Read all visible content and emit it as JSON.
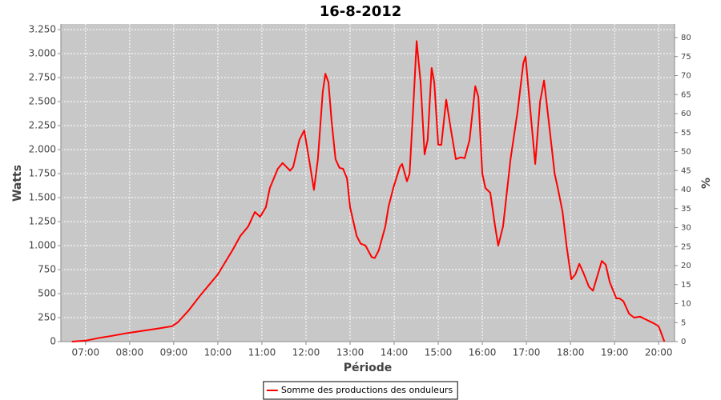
{
  "chart_data": {
    "type": "line",
    "title": "16-8-2012",
    "xlabel": "Période",
    "ylabel": "Watts",
    "y2label": "%",
    "x": [
      6.69,
      7.0,
      7.33,
      7.6,
      7.96,
      8.33,
      8.69,
      8.96,
      9.09,
      9.33,
      9.6,
      10.0,
      10.33,
      10.51,
      10.69,
      10.84,
      10.96,
      11.09,
      11.18,
      11.36,
      11.47,
      11.64,
      11.71,
      11.85,
      11.96,
      12.07,
      12.18,
      12.27,
      12.38,
      12.44,
      12.51,
      12.58,
      12.67,
      12.76,
      12.84,
      12.93,
      13.0,
      13.15,
      13.24,
      13.35,
      13.49,
      13.56,
      13.65,
      13.8,
      13.87,
      13.98,
      14.13,
      14.18,
      14.29,
      14.35,
      14.44,
      14.51,
      14.6,
      14.69,
      14.76,
      14.85,
      14.91,
      15.0,
      15.07,
      15.18,
      15.29,
      15.4,
      15.51,
      15.6,
      15.71,
      15.84,
      15.91,
      16.0,
      16.07,
      16.18,
      16.29,
      16.36,
      16.47,
      16.64,
      16.8,
      16.93,
      16.98,
      17.13,
      17.2,
      17.31,
      17.4,
      17.53,
      17.64,
      17.73,
      17.82,
      17.91,
      18.02,
      18.11,
      18.2,
      18.29,
      18.42,
      18.51,
      18.62,
      18.71,
      18.8,
      18.89,
      19.04,
      19.11,
      19.2,
      19.33,
      19.44,
      19.58,
      19.71,
      19.89,
      20.0,
      20.13
    ],
    "series": [
      {
        "name": "Somme des productions des onduleurs",
        "color": "#ff0000",
        "values": [
          0,
          10,
          40,
          60,
          90,
          115,
          140,
          160,
          200,
          320,
          480,
          700,
          950,
          1100,
          1200,
          1350,
          1300,
          1400,
          1600,
          1800,
          1860,
          1780,
          1820,
          2100,
          2200,
          1900,
          1580,
          1900,
          2600,
          2790,
          2700,
          2300,
          1900,
          1810,
          1800,
          1700,
          1400,
          1100,
          1020,
          1000,
          880,
          870,
          950,
          1200,
          1400,
          1600,
          1820,
          1850,
          1670,
          1750,
          2500,
          3130,
          2700,
          1950,
          2100,
          2850,
          2700,
          2050,
          2050,
          2520,
          2200,
          1900,
          1920,
          1910,
          2100,
          2660,
          2550,
          1750,
          1600,
          1550,
          1200,
          1000,
          1200,
          1900,
          2400,
          2900,
          2970,
          2200,
          1850,
          2500,
          2720,
          2200,
          1750,
          1560,
          1350,
          1000,
          650,
          700,
          810,
          720,
          570,
          530,
          700,
          840,
          800,
          620,
          450,
          450,
          420,
          290,
          250,
          260,
          230,
          190,
          160,
          0
        ]
      }
    ],
    "xlim": [
      6.44,
      20.36
    ],
    "xticks": [
      {
        "value": 7,
        "label": "07:00"
      },
      {
        "value": 8,
        "label": "08:00"
      },
      {
        "value": 9,
        "label": "09:00"
      },
      {
        "value": 10,
        "label": "10:00"
      },
      {
        "value": 11,
        "label": "11:00"
      },
      {
        "value": 12,
        "label": "12:00"
      },
      {
        "value": 13,
        "label": "13:00"
      },
      {
        "value": 14,
        "label": "14:00"
      },
      {
        "value": 15,
        "label": "15:00"
      },
      {
        "value": 16,
        "label": "16:00"
      },
      {
        "value": 17,
        "label": "17:00"
      },
      {
        "value": 18,
        "label": "18:00"
      },
      {
        "value": 19,
        "label": "19:00"
      },
      {
        "value": 20,
        "label": "20:00"
      }
    ],
    "ylim": [
      0,
      3308
    ],
    "yticks": [
      0,
      250,
      500,
      750,
      {
        "value": 1000,
        "label": "1.000"
      },
      {
        "value": 1250,
        "label": "1.250"
      },
      {
        "value": 1500,
        "label": "1.500"
      },
      {
        "value": 1750,
        "label": "1.750"
      },
      {
        "value": 2000,
        "label": "2.000"
      },
      {
        "value": 2250,
        "label": "2.250"
      },
      {
        "value": 2500,
        "label": "2.500"
      },
      {
        "value": 2750,
        "label": "2.750"
      },
      {
        "value": 3000,
        "label": "3.000"
      },
      {
        "value": 3250,
        "label": "3.250"
      }
    ],
    "y2lim": [
      0,
      83.58
    ],
    "y2ticks": [
      0,
      5,
      10,
      15,
      20,
      25,
      30,
      35,
      40,
      45,
      50,
      55,
      60,
      65,
      70,
      75,
      80
    ],
    "grid": true,
    "legend": "bottom"
  }
}
